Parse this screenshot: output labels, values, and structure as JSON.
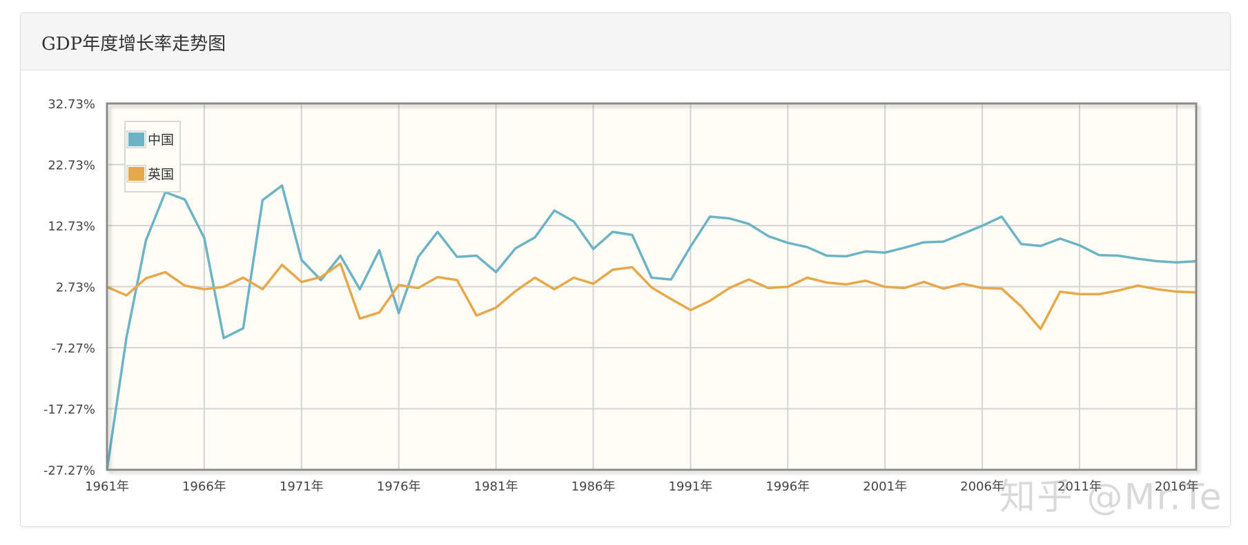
{
  "panel": {
    "title": "GDP年度增长率走势图"
  },
  "watermark": "知乎 @Mr.Te",
  "colors": {
    "china": "#6db3c6",
    "uk": "#e6a84a",
    "plot_background": "#fdfcf5",
    "grid": "#d4d4d4",
    "frame": "#8a8a8a"
  },
  "chart_data": {
    "type": "line",
    "title": "GDP年度增长率走势图",
    "xlabel": "",
    "ylabel": "",
    "ylim": [
      -27.27,
      32.73
    ],
    "xlim": [
      1961,
      2017
    ],
    "grid": true,
    "legend_position": "top-left",
    "x_tick_labels": [
      "1961年",
      "1966年",
      "1971年",
      "1976年",
      "1981年",
      "1986年",
      "1991年",
      "1996年",
      "2001年",
      "2006年",
      "2011年",
      "2016年"
    ],
    "x_tick_values": [
      1961,
      1966,
      1971,
      1976,
      1981,
      1986,
      1991,
      1996,
      2001,
      2006,
      2011,
      2016
    ],
    "y_tick_labels": [
      "32.73%",
      "22.73%",
      "12.73%",
      "2.73%",
      "-7.27%",
      "-17.27%",
      "-27.27%"
    ],
    "y_tick_values": [
      32.73,
      22.73,
      12.73,
      2.73,
      -7.27,
      -17.27,
      -27.27
    ],
    "x": [
      1961,
      1962,
      1963,
      1964,
      1965,
      1966,
      1967,
      1968,
      1969,
      1970,
      1971,
      1972,
      1973,
      1974,
      1975,
      1976,
      1977,
      1978,
      1979,
      1980,
      1981,
      1982,
      1983,
      1984,
      1985,
      1986,
      1987,
      1988,
      1989,
      1990,
      1991,
      1992,
      1993,
      1994,
      1995,
      1996,
      1997,
      1998,
      1999,
      2000,
      2001,
      2002,
      2003,
      2004,
      2005,
      2006,
      2007,
      2008,
      2009,
      2010,
      2011,
      2012,
      2013,
      2014,
      2015,
      2016,
      2017
    ],
    "series": [
      {
        "name": "中国",
        "color": "#6db3c6",
        "values": [
          -27.27,
          -5.6,
          10.3,
          18.2,
          17.0,
          10.7,
          -5.7,
          -4.1,
          16.9,
          19.3,
          7.1,
          3.8,
          7.8,
          2.3,
          8.7,
          -1.6,
          7.6,
          11.7,
          7.6,
          7.8,
          5.1,
          9.0,
          10.8,
          15.2,
          13.4,
          8.9,
          11.7,
          11.2,
          4.2,
          3.9,
          9.3,
          14.2,
          13.9,
          13.0,
          11.0,
          9.9,
          9.2,
          7.8,
          7.7,
          8.5,
          8.3,
          9.1,
          10.0,
          10.1,
          11.4,
          12.7,
          14.2,
          9.7,
          9.4,
          10.6,
          9.5,
          7.9,
          7.8,
          7.3,
          6.9,
          6.7,
          6.9
        ]
      },
      {
        "name": "英国",
        "color": "#e6a84a",
        "values": [
          2.7,
          1.3,
          4.1,
          5.1,
          2.9,
          2.3,
          2.7,
          4.2,
          2.3,
          6.3,
          3.5,
          4.3,
          6.5,
          -2.5,
          -1.5,
          3.0,
          2.5,
          4.3,
          3.8,
          -2.0,
          -0.7,
          2.0,
          4.2,
          2.3,
          4.2,
          3.2,
          5.5,
          5.9,
          2.6,
          0.7,
          -1.1,
          0.4,
          2.5,
          3.9,
          2.5,
          2.7,
          4.2,
          3.4,
          3.1,
          3.7,
          2.7,
          2.5,
          3.5,
          2.4,
          3.2,
          2.5,
          2.4,
          -0.5,
          -4.2,
          1.9,
          1.5,
          1.5,
          2.1,
          2.9,
          2.3,
          1.9,
          1.8
        ]
      }
    ]
  }
}
